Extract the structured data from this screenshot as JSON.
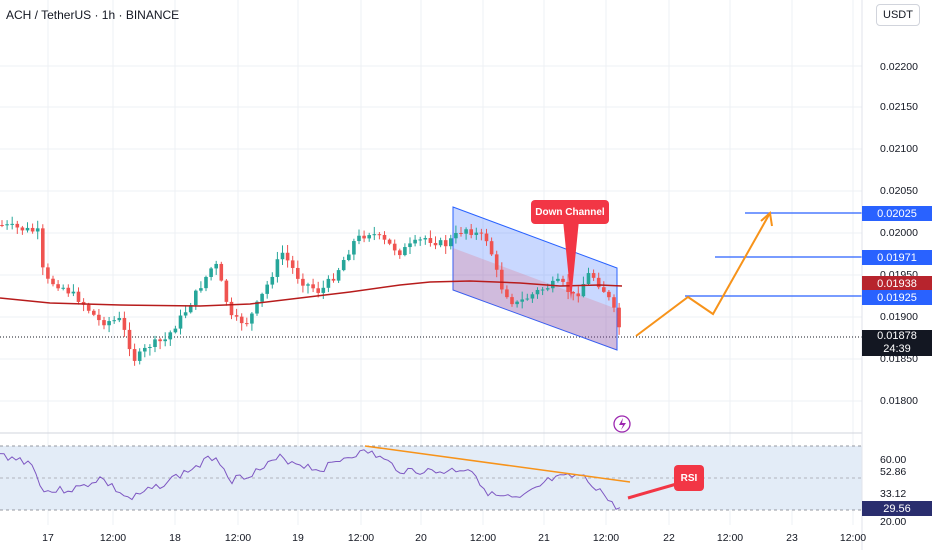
{
  "header": {
    "title": "ACH / TetherUS · 1h · BINANCE",
    "currency_button": "USDT"
  },
  "price_axis": {
    "labels": [
      "0.02200",
      "0.02150",
      "0.02100",
      "0.02050",
      "0.02000",
      "0.01950",
      "0.01900",
      "0.01850",
      "0.01800"
    ],
    "tags": {
      "level_top": "0.02025",
      "level_mid": "0.01971",
      "ma_value": "0.01938",
      "level_low": "0.01925",
      "last_price": "0.01878",
      "countdown": "24:39"
    }
  },
  "rsi_axis": {
    "labels": [
      "60.00",
      "52.86",
      "33.12",
      "20.00"
    ],
    "rsi_value": "29.56"
  },
  "time_axis": {
    "labels": [
      "17",
      "12:00",
      "18",
      "12:00",
      "19",
      "12:00",
      "20",
      "12:00",
      "21",
      "12:00",
      "22",
      "12:00",
      "23",
      "12:00"
    ]
  },
  "annotations": {
    "channel_label": "Down Channel",
    "rsi_label": "RSI"
  },
  "colors": {
    "up": "#26a69a",
    "down": "#ef5350",
    "ma": "#b71c1c",
    "accent": "#2962ff",
    "projection": "#f7931a",
    "rsi_line": "#7e57c2"
  },
  "icons": {
    "flash": "lightning-icon"
  }
}
